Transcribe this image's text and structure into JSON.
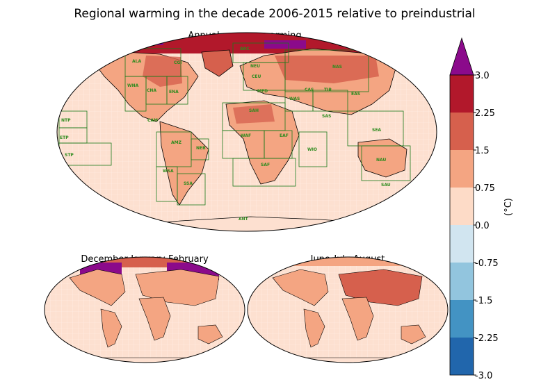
{
  "title": "Regional warming in the decade 2006-2015 relative to preindustrial",
  "panels": {
    "annual": "Annual average warming",
    "djf": "December-January-February",
    "jja": "June-July-August"
  },
  "colorbar": {
    "label": "(°C)",
    "ticks": [
      "3.0",
      "2.25",
      "1.5",
      "0.75",
      "0.0",
      "-0.75",
      "-1.5",
      "-2.25",
      "-3.0"
    ],
    "colors": [
      "#2166ac",
      "#4393c3",
      "#92c5de",
      "#d1e5f0",
      "#fddbc7",
      "#f4a582",
      "#d6604d",
      "#b2182b"
    ],
    "over_color": "#8b0a8b"
  },
  "regions": [
    "ARC",
    "ALA",
    "NEU",
    "NAS",
    "CGI",
    "WNA",
    "CNA",
    "ENA",
    "CEU",
    "CAS",
    "TIB",
    "MED",
    "WAS",
    "EAS",
    "SAH",
    "SAS",
    "NTP",
    "CAM",
    "SEA",
    "ETP",
    "WAF",
    "EAF",
    "WIO",
    "AMZ",
    "NEB",
    "STP",
    "SAF",
    "NAU",
    "WSA",
    "SSA",
    "SAU",
    "ANT"
  ],
  "colors": {
    "ocean": "#fde0d0",
    "land_warm": "#f4a582",
    "land_hot": "#d6604d",
    "arctic": "#b2182b",
    "outline_green": "#1a7a1a"
  }
}
